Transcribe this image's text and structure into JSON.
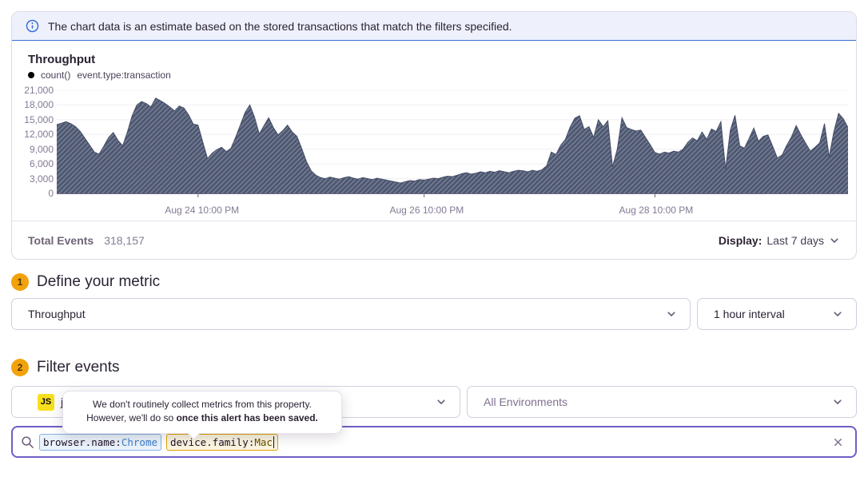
{
  "banner": {
    "icon": "info-icon",
    "text": "The chart data is an estimate based on the stored transactions that match the filters specified."
  },
  "chart_panel": {
    "title": "Throughput",
    "legend": {
      "dot_icon": "series-dot",
      "series_label": "count()",
      "query_label": "event.type:transaction"
    },
    "footer": {
      "total_label": "Total Events",
      "total_value": "318,157",
      "display_label": "Display:",
      "display_value": "Last 7 days",
      "display_caret_icon": "chevron-down-icon"
    }
  },
  "chart_data": {
    "type": "area",
    "title": "Throughput",
    "subtitle": "count() event.type:transaction",
    "ylim": [
      0,
      21000
    ],
    "yticks": [
      0,
      3000,
      6000,
      9000,
      12000,
      15000,
      18000,
      21000
    ],
    "ytick_labels": [
      "0",
      "3,000",
      "6,000",
      "9,000",
      "12,000",
      "15,000",
      "18,000",
      "21,000"
    ],
    "xticks": [
      {
        "label": "Aug 24 10:00 PM",
        "pos": 0.1786
      },
      {
        "label": "Aug 26 10:00 PM",
        "pos": 0.4643
      },
      {
        "label": "Aug 28 10:00 PM",
        "pos": 0.756
      }
    ],
    "grid": "horizontal",
    "legend_position": "top-left",
    "fill_color": "#4e5872",
    "hatch": "diagonal",
    "series": [
      {
        "name": "count()",
        "values": [
          14000,
          14300,
          14600,
          14200,
          13600,
          12600,
          11200,
          9800,
          8400,
          8000,
          9600,
          11400,
          12400,
          10800,
          9700,
          12500,
          15800,
          18000,
          18700,
          18300,
          17600,
          19400,
          18900,
          18300,
          17600,
          16800,
          17800,
          17400,
          16000,
          14100,
          13900,
          10500,
          7100,
          8200,
          8900,
          9400,
          8500,
          9200,
          11500,
          14000,
          16500,
          18000,
          15500,
          12100,
          13800,
          15400,
          13400,
          11900,
          12800,
          13900,
          12500,
          11600,
          9200,
          6500,
          4600,
          3700,
          3200,
          3000,
          3300,
          3100,
          2900,
          3200,
          3400,
          3100,
          2900,
          3200,
          3000,
          2800,
          3100,
          2900,
          2700,
          2500,
          2300,
          2100,
          2400,
          2600,
          2500,
          2800,
          2700,
          2900,
          3100,
          3000,
          3300,
          3500,
          3400,
          3700,
          4000,
          4200,
          3900,
          4100,
          4400,
          4200,
          4500,
          4300,
          4600,
          4400,
          4200,
          4500,
          4700,
          4600,
          4400,
          4700,
          4500,
          4800,
          5600,
          8400,
          7900,
          9800,
          11000,
          13500,
          15300,
          15800,
          13000,
          13600,
          11400,
          15000,
          13600,
          14800,
          5400,
          9000,
          15400,
          13400,
          13000,
          12700,
          12900,
          11400,
          9900,
          8300,
          8000,
          8400,
          8200,
          8600,
          8400,
          9000,
          10400,
          11300,
          10700,
          12500,
          11000,
          13100,
          12600,
          14600,
          4900,
          12800,
          15900,
          9700,
          9200,
          11200,
          13300,
          10600,
          11600,
          11900,
          9600,
          7200,
          7800,
          9800,
          11500,
          13800,
          11900,
          10200,
          8600,
          9400,
          10300,
          14200,
          7400,
          12600,
          16300,
          15200,
          13400
        ]
      }
    ]
  },
  "sections": {
    "metric": {
      "step": "1",
      "title": "Define your metric",
      "metric_select_value": "Throughput",
      "interval_select_value": "1 hour interval"
    },
    "filter": {
      "step": "2",
      "title": "Filter events",
      "project_select": {
        "platform_badge": "JS",
        "visible_label": "j"
      },
      "environment_select_value": "All Environments"
    }
  },
  "tooltip": {
    "line1": "We don't routinely collect metrics from this property.",
    "line2_regular": "However, we'll do so ",
    "line2_bold": "once this alert has been saved."
  },
  "search": {
    "icon": "search-icon",
    "clear_icon": "close-icon",
    "tokens": [
      {
        "key": "browser.name:",
        "value": "Chrome",
        "style": "blue"
      },
      {
        "key": "device.family:",
        "value": "Mac",
        "style": "amber"
      }
    ]
  },
  "colors": {
    "accent_purple": "#6e5fc6",
    "banner_blue": "#3770d6",
    "banner_bg": "#eef1fb",
    "chart_fill": "#4e5872",
    "step_badge": "#f2a20c",
    "js_badge": "#f7df1e",
    "token_blue_border": "#83b3e3",
    "token_amber_border": "#dda602",
    "axis_text": "#837a94"
  }
}
